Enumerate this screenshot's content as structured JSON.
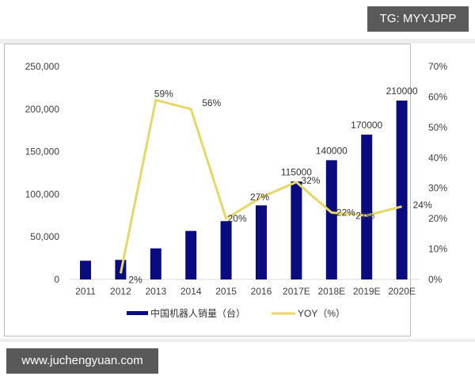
{
  "watermarks": {
    "top_right": "TG: MYYJJPP",
    "bottom_left": "www.juchengyuan.com"
  },
  "colors": {
    "bar": "#0b0b80",
    "line": "#e6d769",
    "badge_bg": "#5a5a5a"
  },
  "chart_data": {
    "type": "bar+line",
    "title": "",
    "categories": [
      "2011",
      "2012",
      "2013",
      "2014",
      "2015",
      "2016",
      "2017E",
      "2018E",
      "2019E",
      "2020E"
    ],
    "series": [
      {
        "name": "中国机器人销量（台）",
        "type": "bar",
        "axis": "left",
        "values": [
          22000,
          23000,
          36500,
          57000,
          68500,
          87000,
          115000,
          140000,
          170000,
          210000
        ],
        "data_labels": [
          "",
          "",
          "",
          "",
          "",
          "",
          "115000",
          "140000",
          "170000",
          "210000"
        ]
      },
      {
        "name": "YOY（%）",
        "type": "line",
        "axis": "right",
        "values": [
          null,
          2,
          59,
          56,
          20,
          27,
          32,
          22,
          21,
          24
        ],
        "data_labels": [
          "",
          "2%",
          "59%",
          "56%",
          "20%",
          "27%",
          "32%",
          "22%",
          "21%",
          "24%"
        ]
      }
    ],
    "left_axis": {
      "ylim": [
        0,
        250000
      ],
      "ticks": [
        "0",
        "50,000",
        "100,000",
        "150,000",
        "200,000",
        "250,000"
      ]
    },
    "right_axis": {
      "ylim": [
        0,
        70
      ],
      "ticks": [
        "0%",
        "10%",
        "20%",
        "30%",
        "40%",
        "50%",
        "60%",
        "70%"
      ]
    },
    "xlabel": "",
    "ylabel": "",
    "grid": false,
    "legend_position": "bottom",
    "legend": [
      "中国机器人销量（台）",
      "YOY（%）"
    ]
  }
}
